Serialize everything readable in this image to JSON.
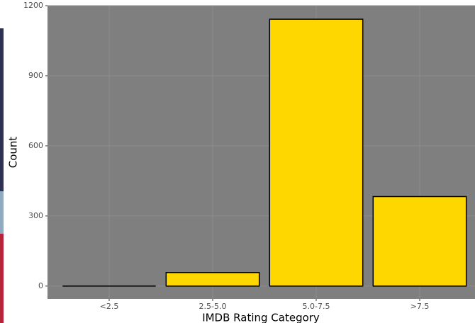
{
  "chart_data": {
    "type": "bar",
    "categories": [
      "<2.5",
      "2.5-5.0",
      "5.0-7.5",
      ">7.5"
    ],
    "values": [
      0,
      58,
      1142,
      383
    ],
    "color": "#ffd700",
    "xlabel": "IMDB Rating Category",
    "ylabel": "Count",
    "ylim": [
      -55,
      1200
    ],
    "yticks": [
      0,
      300,
      600,
      900,
      1200
    ],
    "grid": true
  }
}
